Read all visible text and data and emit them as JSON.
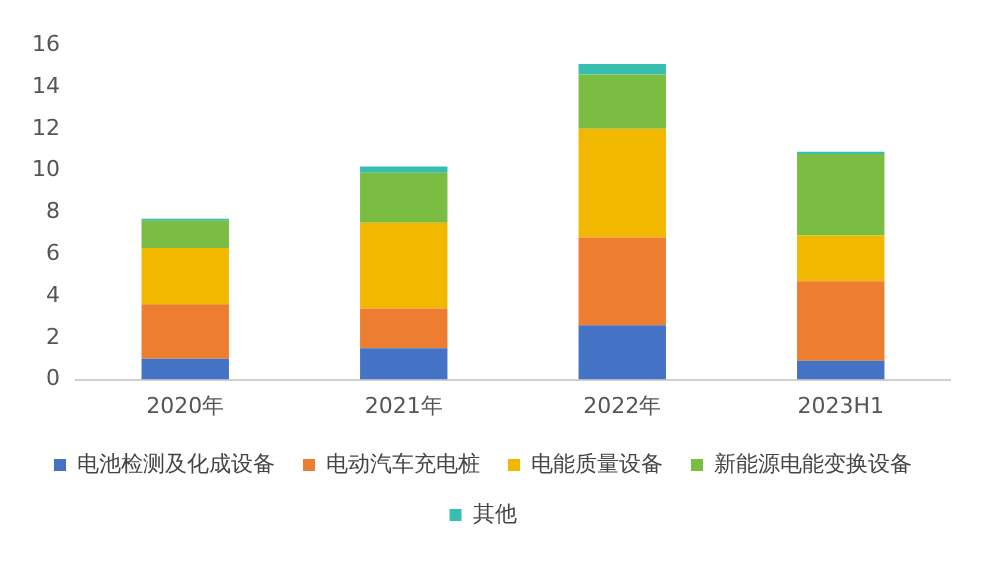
{
  "chart_data": {
    "type": "bar",
    "stacked": true,
    "categories": [
      "2020年",
      "2021年",
      "2022年",
      "2023H1"
    ],
    "series": [
      {
        "name": "电池检测及化成设备",
        "color": "#4472c4",
        "values": [
          1.0,
          1.5,
          2.6,
          0.9
        ]
      },
      {
        "name": "电动汽车充电桩",
        "color": "#ed7d31",
        "values": [
          2.6,
          1.9,
          4.2,
          3.8
        ]
      },
      {
        "name": "电能质量设备",
        "color": "#f2b800",
        "values": [
          2.7,
          4.1,
          5.2,
          2.2
        ]
      },
      {
        "name": "新能源电能变换设备",
        "color": "#7abd42",
        "values": [
          1.3,
          2.4,
          2.6,
          3.9
        ]
      },
      {
        "name": "其他",
        "color": "#36bfb0",
        "values": [
          0.1,
          0.3,
          0.5,
          0.1
        ]
      }
    ],
    "ylim": [
      0,
      16
    ],
    "yticks": [
      0,
      2,
      4,
      6,
      8,
      10,
      12,
      14,
      16
    ],
    "grid": false,
    "legend": "bottom"
  }
}
